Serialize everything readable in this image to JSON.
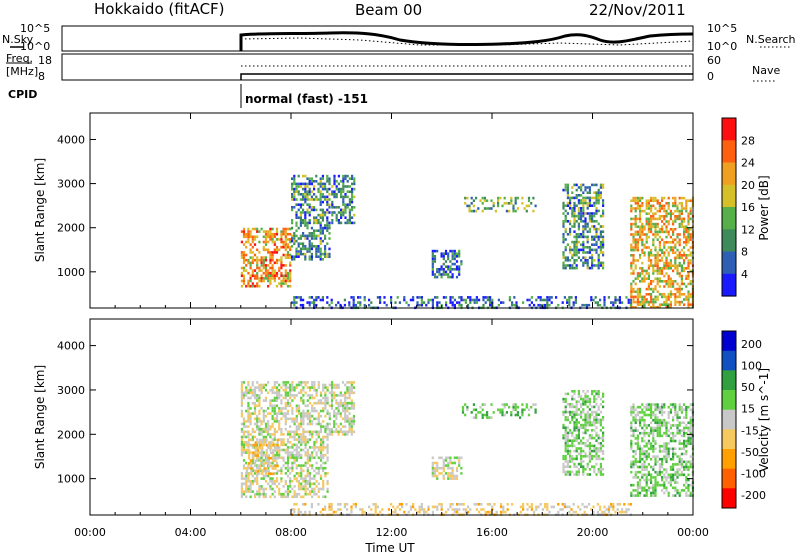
{
  "header": {
    "title": "Hokkaido (fitACF)",
    "beam": "Beam 00",
    "date": "22/Nov/2011"
  },
  "noise_panel": {
    "left_label": "N.Sky",
    "left_ticks": [
      "10^5",
      "10^0"
    ],
    "right_ticks": [
      "10^5",
      "10^0"
    ],
    "right_label": "N.Search"
  },
  "freq_panel": {
    "left_label_line1": "Freq.",
    "left_label_line2": "[MHz]",
    "left_ticks": [
      "18",
      "8"
    ],
    "right_ticks": [
      "60",
      "0"
    ],
    "right_label": "Nave"
  },
  "cpid": {
    "label": "CPID",
    "mode": "normal (fast) -151"
  },
  "colors": {
    "power_scale": [
      "#1a1aff",
      "#2f5fb5",
      "#3f8a5a",
      "#55b04a",
      "#d6c02a",
      "#f0a020",
      "#ff6010",
      "#ff1010"
    ],
    "velocity_scale": [
      "#ff0000",
      "#ff6000",
      "#ffa000",
      "#f5c860",
      "#c8c8c8",
      "#60d040",
      "#30a040",
      "#1050c0",
      "#0000d0"
    ]
  },
  "chart_data": [
    {
      "type": "heatmap",
      "title": "",
      "xlabel": "Time UT",
      "ylabel": "Slant Range [km]",
      "x_ticks": [
        "00:00",
        "04:00",
        "08:00",
        "12:00",
        "16:00",
        "20:00",
        "00:00"
      ],
      "y_ticks": [
        "1000",
        "2000",
        "3000",
        "4000"
      ],
      "ylim": [
        180,
        4600
      ],
      "colorbar": {
        "label": "Power [dB]",
        "ticks": [
          "4",
          "8",
          "12",
          "16",
          "20",
          "24",
          "28"
        ],
        "range": [
          0,
          32
        ]
      },
      "regions": [
        {
          "t0": 6.0,
          "t1": 8.0,
          "r0": 700,
          "r1": 2000,
          "value": 22
        },
        {
          "t0": 8.0,
          "t1": 9.5,
          "r0": 1300,
          "r1": 3200,
          "value": 10
        },
        {
          "t0": 9.6,
          "t1": 10.5,
          "r0": 2100,
          "r1": 3200,
          "value": 9
        },
        {
          "t0": 13.6,
          "t1": 14.8,
          "r0": 900,
          "r1": 1500,
          "value": 6
        },
        {
          "t0": 14.8,
          "t1": 17.7,
          "r0": 2400,
          "r1": 2700,
          "value": 12
        },
        {
          "t0": 18.8,
          "t1": 20.4,
          "r0": 1100,
          "r1": 3000,
          "value": 10
        },
        {
          "t0": 21.5,
          "t1": 24.0,
          "r0": 200,
          "r1": 2700,
          "value": 20
        },
        {
          "t0": 8.0,
          "t1": 21.5,
          "r0": 180,
          "r1": 450,
          "value": 6
        }
      ]
    },
    {
      "type": "heatmap",
      "title": "",
      "xlabel": "Time UT",
      "ylabel": "Slant Range [km]",
      "x_ticks": [
        "00:00",
        "04:00",
        "08:00",
        "12:00",
        "16:00",
        "20:00",
        "00:00"
      ],
      "y_ticks": [
        "1000",
        "2000",
        "3000",
        "4000"
      ],
      "ylim": [
        180,
        4600
      ],
      "colorbar": {
        "label": "Velocity [m s^-1]",
        "ticks": [
          "200",
          "100",
          "50",
          "15",
          "-15",
          "-50",
          "-100",
          "-200"
        ],
        "range": [
          -250,
          250
        ]
      },
      "regions": [
        {
          "t0": 6.0,
          "t1": 9.5,
          "r0": 600,
          "r1": 3200,
          "value": 0
        },
        {
          "t0": 6.2,
          "t1": 7.5,
          "r0": 1100,
          "r1": 1900,
          "value": -40
        },
        {
          "t0": 9.5,
          "t1": 10.5,
          "r0": 2000,
          "r1": 3200,
          "value": 0
        },
        {
          "t0": 13.6,
          "t1": 14.8,
          "r0": 1000,
          "r1": 1500,
          "value": 0
        },
        {
          "t0": 14.8,
          "t1": 17.7,
          "r0": 2400,
          "r1": 2700,
          "value": 60
        },
        {
          "t0": 18.8,
          "t1": 20.4,
          "r0": 1100,
          "r1": 3000,
          "value": 40
        },
        {
          "t0": 21.5,
          "t1": 24.0,
          "r0": 600,
          "r1": 2700,
          "value": 45
        },
        {
          "t0": 8.0,
          "t1": 21.5,
          "r0": 180,
          "r1": 450,
          "value": -40
        }
      ]
    }
  ]
}
